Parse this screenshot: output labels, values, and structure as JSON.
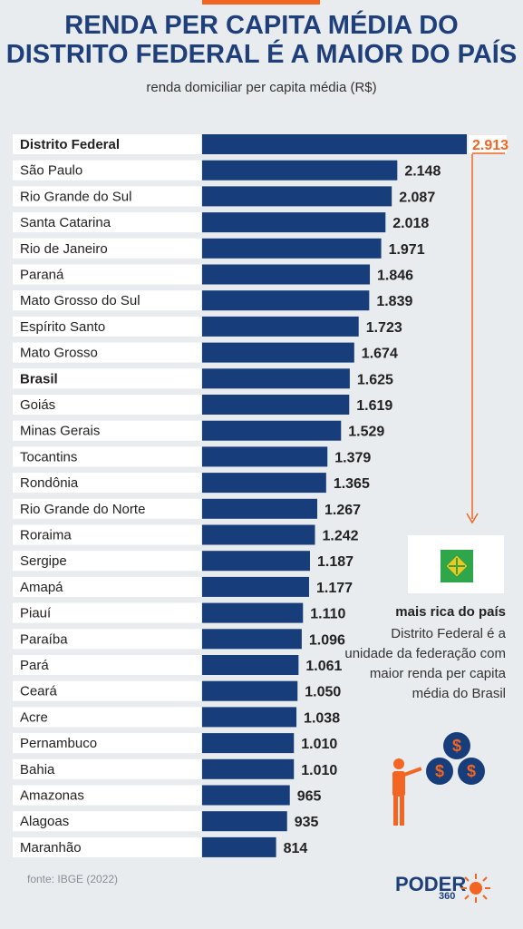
{
  "header": {
    "title_line1": "RENDA PER CAPITA MÉDIA DO",
    "title_line2": "DISTRITO FEDERAL É A MAIOR DO PAÍS",
    "subtitle": "renda domiciliar per capita média (R$)"
  },
  "chart_data": {
    "type": "bar",
    "orientation": "horizontal",
    "title": "RENDA PER CAPITA MÉDIA DO DISTRITO FEDERAL É A MAIOR DO PAÍS",
    "subtitle": "renda domiciliar per capita média (R$)",
    "categories": [
      "Distrito Federal",
      "São Paulo",
      "Rio Grande do Sul",
      "Santa Catarina",
      "Rio de Janeiro",
      "Paraná",
      "Mato Grosso do Sul",
      "Espírito Santo",
      "Mato Grosso",
      "Brasil",
      "Goiás",
      "Minas Gerais",
      "Tocantins",
      "Rondônia",
      "Rio Grande do Norte",
      "Roraima",
      "Sergipe",
      "Amapá",
      "Piauí",
      "Paraíba",
      "Pará",
      "Ceará",
      "Acre",
      "Pernambuco",
      "Bahia",
      "Amazonas",
      "Alagoas",
      "Maranhão"
    ],
    "values": [
      2913,
      2148,
      2087,
      2018,
      1971,
      1846,
      1839,
      1723,
      1674,
      1625,
      1619,
      1529,
      1379,
      1365,
      1267,
      1242,
      1187,
      1177,
      1110,
      1096,
      1061,
      1050,
      1038,
      1010,
      1010,
      965,
      935,
      814
    ],
    "labels": [
      "2.913",
      "2.148",
      "2.087",
      "2.018",
      "1.971",
      "1.846",
      "1.839",
      "1.723",
      "1.674",
      "1.625",
      "1.619",
      "1.529",
      "1.379",
      "1.365",
      "1.267",
      "1.242",
      "1.187",
      "1.177",
      "1.110",
      "1.096",
      "1.061",
      "1.050",
      "1.038",
      "1.010",
      "1.010",
      "965",
      "935",
      "814"
    ],
    "bold_categories": [
      "Distrito Federal",
      "Brasil"
    ],
    "highlight_category": "Distrito Federal",
    "xlim": [
      0,
      2913
    ]
  },
  "colors": {
    "bar": "#173d7a",
    "highlight_label": "#f26522",
    "background": "#e9ecef",
    "label_background": "#ffffff"
  },
  "callout": {
    "title": "mais rica do país",
    "body": "Distrito Federal é a unidade da federação com maior renda per capita média do Brasil",
    "flag_icon": "distrito-federal-flag-icon",
    "illustration_icon": "person-with-coins-icon"
  },
  "footer": {
    "source": "fonte: IBGE (2022)",
    "logo_main": "PODER",
    "logo_sub": "360"
  }
}
